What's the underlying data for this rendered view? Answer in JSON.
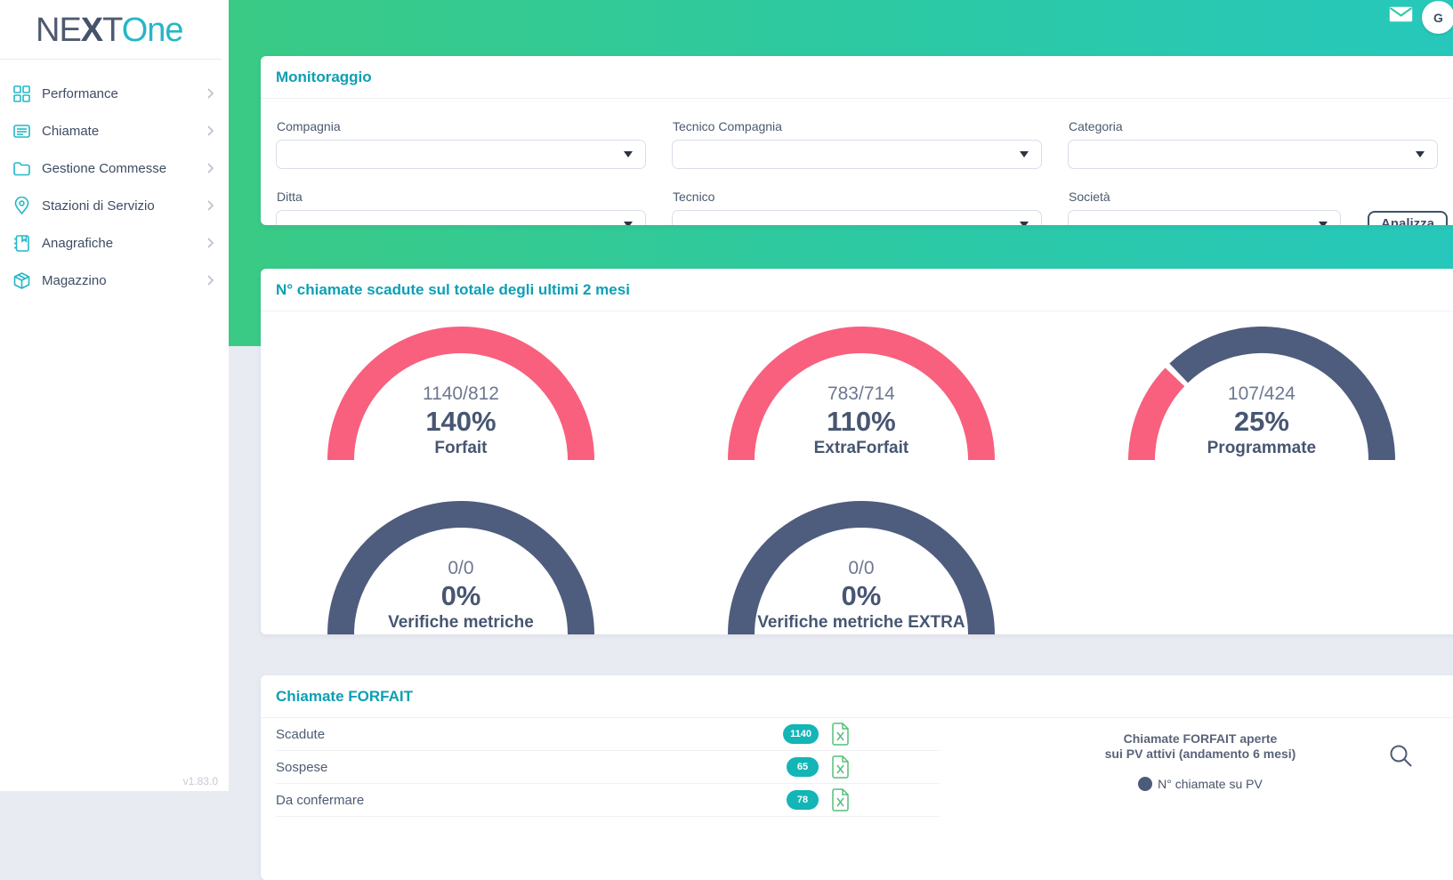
{
  "app": {
    "logo": {
      "ne": "NE",
      "x": "X",
      "t": "T",
      "one": "One"
    },
    "version": "v1.83.0"
  },
  "header": {
    "avatar_initial": "G"
  },
  "sidebar": {
    "items": [
      {
        "label": "Performance",
        "icon": "dashboard-icon"
      },
      {
        "label": "Chiamate",
        "icon": "calls-icon"
      },
      {
        "label": "Gestione Commesse",
        "icon": "folder-icon"
      },
      {
        "label": "Stazioni di Servizio",
        "icon": "map-pin-icon"
      },
      {
        "label": "Anagrafiche",
        "icon": "address-book-icon"
      },
      {
        "label": "Magazzino",
        "icon": "package-icon"
      }
    ]
  },
  "monitoring": {
    "title": "Monitoraggio",
    "fields": {
      "compagnia": "Compagnia",
      "tecnico_compagnia": "Tecnico Compagnia",
      "categoria": "Categoria",
      "ditta": "Ditta",
      "tecnico": "Tecnico",
      "societa": "Società"
    },
    "analyze_label": "Analizza"
  },
  "gauges_panel": {
    "title": "N° chiamate scadute sul totale degli ultimi 2 mesi",
    "gauges": [
      {
        "fraction": "1140/812",
        "percent": "140%",
        "label": "Forfait",
        "pct": 140
      },
      {
        "fraction": "783/714",
        "percent": "110%",
        "label": "ExtraForfait",
        "pct": 110
      },
      {
        "fraction": "107/424",
        "percent": "25%",
        "label": "Programmate",
        "pct": 25
      },
      {
        "fraction": "0/0",
        "percent": "0%",
        "label": "Verifiche metriche",
        "pct": 0
      },
      {
        "fraction": "0/0",
        "percent": "0%",
        "label": "Verifiche metriche EXTRA",
        "pct": 0
      }
    ]
  },
  "forfait_panel": {
    "title": "Chiamate FORFAIT",
    "rows": [
      {
        "label": "Scadute",
        "count": "1140"
      },
      {
        "label": "Sospese",
        "count": "65"
      },
      {
        "label": "Da confermare",
        "count": "78"
      }
    ],
    "chart": {
      "title_line1": "Chiamate FORFAIT aperte",
      "title_line2": "sui PV attivi (andamento 6 mesi)",
      "legend": "N° chiamate su PV"
    }
  },
  "colors": {
    "accent_teal": "#0d9fb4",
    "icon_teal": "#23b7c8",
    "badge_teal": "#13b5b7",
    "gauge_pink": "#f8607e",
    "gauge_dark": "#4e5d7d",
    "green_gradient_start": "#3aca85",
    "green_gradient_end": "#27c8bb",
    "excel_green": "#55bf7c"
  }
}
